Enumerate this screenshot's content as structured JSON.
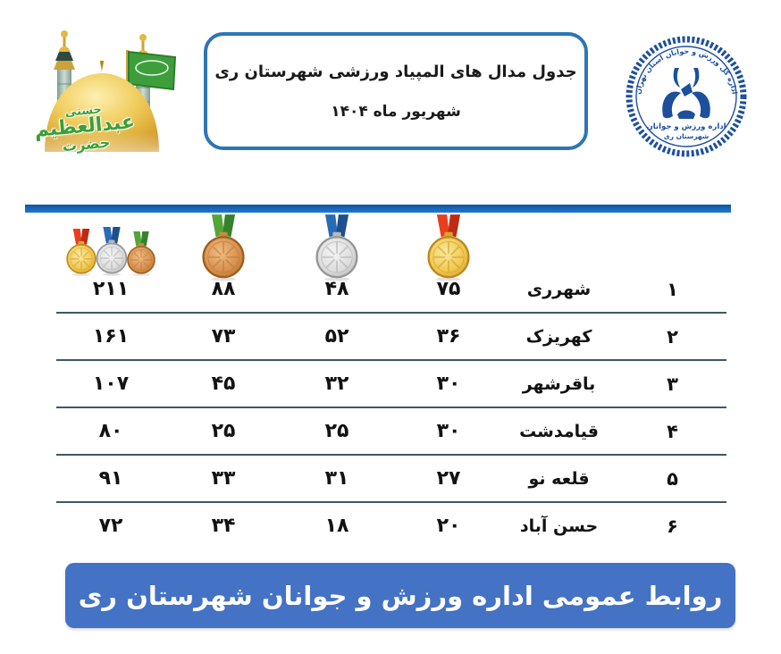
{
  "title_box": {
    "line1": "جدول مدال های المپیاد ورزشی شهرستان ری",
    "line2": "شهریور ماه ۱۴۰۴"
  },
  "shrine": {
    "calligraphy_line1": "حسنی",
    "calligraphy_line2": "عبدالعظیم",
    "calligraphy_line3": "حضرت"
  },
  "logo": {
    "ring_text": "اداره کل ورزش و جوانان استان تهران",
    "inner_line1": "اداره ورزش و جوانان",
    "inner_line2": "شهرستان ری",
    "color": "#1d4f9e"
  },
  "table": {
    "columns": [
      {
        "key": "total",
        "icon": "medals-trio-icon"
      },
      {
        "key": "bronze",
        "icon": "bronze-medal-icon"
      },
      {
        "key": "silver",
        "icon": "silver-medal-icon"
      },
      {
        "key": "gold",
        "icon": "gold-medal-icon"
      },
      {
        "key": "city",
        "icon": null
      },
      {
        "key": "rank",
        "icon": null
      }
    ],
    "rows": [
      {
        "rank": "۱",
        "city": "شهرری",
        "gold": "۷۵",
        "silver": "۴۸",
        "bronze": "۸۸",
        "total": "۲۱۱"
      },
      {
        "rank": "۲",
        "city": "کهریزک",
        "gold": "۳۶",
        "silver": "۵۲",
        "bronze": "۷۳",
        "total": "۱۶۱"
      },
      {
        "rank": "۳",
        "city": "باقرشهر",
        "gold": "۳۰",
        "silver": "۳۲",
        "bronze": "۴۵",
        "total": "۱۰۷"
      },
      {
        "rank": "۴",
        "city": "قیامدشت",
        "gold": "۳۰",
        "silver": "۲۵",
        "bronze": "۲۵",
        "total": "۸۰"
      },
      {
        "rank": "۵",
        "city": "قلعه نو",
        "gold": "۲۷",
        "silver": "۳۱",
        "bronze": "۳۳",
        "total": "۹۱"
      },
      {
        "rank": "۶",
        "city": "حسن آباد",
        "gold": "۲۰",
        "silver": "۱۸",
        "bronze": "۳۴",
        "total": "۷۲"
      }
    ]
  },
  "chart_data": {
    "type": "table",
    "title": "جدول مدال های المپیاد ورزشی شهرستان ری - شهریور ماه ۱۴۰۴",
    "columns": [
      "rank",
      "city",
      "gold",
      "silver",
      "bronze",
      "total"
    ],
    "rows": [
      [
        1,
        "شهرری",
        75,
        48,
        88,
        211
      ],
      [
        2,
        "کهریزک",
        36,
        52,
        73,
        161
      ],
      [
        3,
        "باقرشهر",
        30,
        32,
        45,
        107
      ],
      [
        4,
        "قیامدشت",
        30,
        25,
        25,
        80
      ],
      [
        5,
        "قلعه نو",
        27,
        31,
        33,
        91
      ],
      [
        6,
        "حسن آباد",
        20,
        18,
        34,
        72
      ]
    ]
  },
  "icons": {
    "gold": {
      "name": "gold-medal-icon",
      "ribbon": "#e8401f",
      "ribbonDark": "#bf2a10",
      "clasp": "#d9a62e",
      "light": "#fbe9a0",
      "mid": "#f0c84f",
      "dark": "#d9a32b",
      "rim": "#bb8a1f",
      "lines": "#c9992a"
    },
    "silver": {
      "name": "silver-medal-icon",
      "ribbon": "#2a6bb5",
      "ribbonDark": "#1c4f8e",
      "clasp": "#b9b9b9",
      "light": "#f5f5f5",
      "mid": "#dcdcdc",
      "dark": "#b9b9b9",
      "rim": "#979797",
      "lines": "#ababab"
    },
    "bronze": {
      "name": "bronze-medal-icon",
      "ribbon": "#52a53a",
      "ribbonDark": "#35822a",
      "clasp": "#c98a3e",
      "light": "#f0bd84",
      "mid": "#d89050",
      "dark": "#bf7228",
      "rim": "#9e5f1c",
      "lines": "#b87a35"
    }
  },
  "footer": {
    "banner_text": "روابط عمومی اداره ورزش و جوانان شهرستان ری",
    "banner_color": "#4472c4"
  },
  "colors": {
    "accent_bar": "#1b6fc4",
    "divider": "#3d5866",
    "title_border": "#2e75b6"
  }
}
